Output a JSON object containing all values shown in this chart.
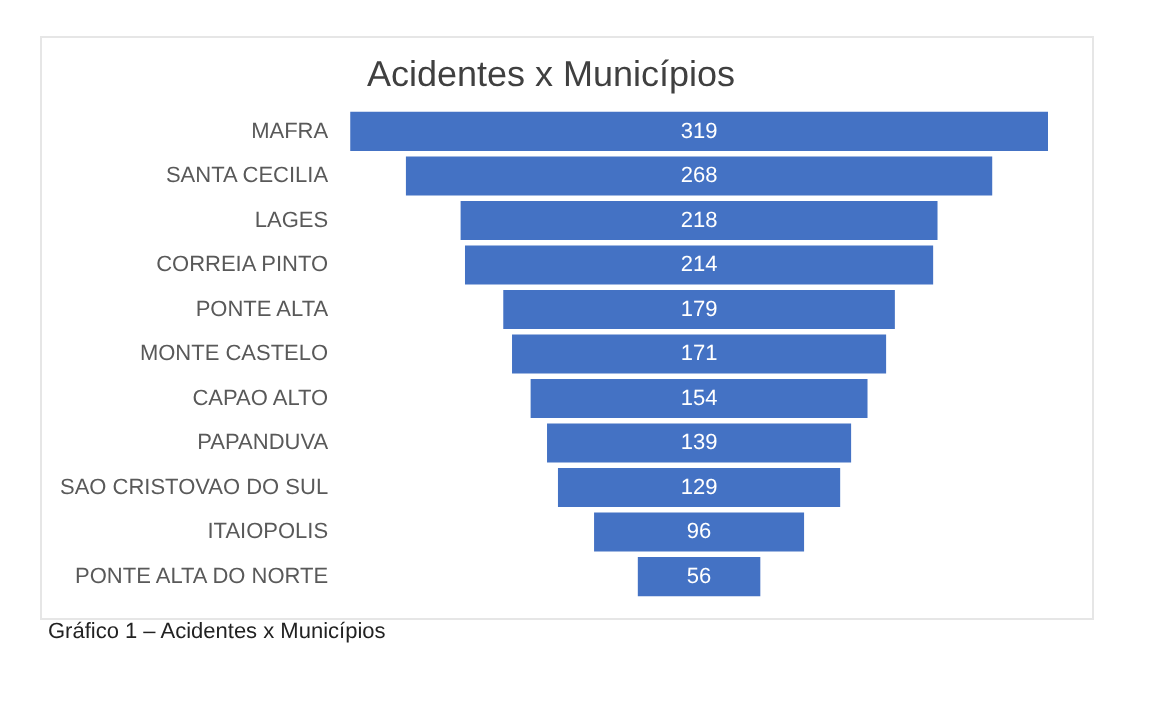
{
  "chart_data": {
    "type": "other",
    "title": "Acidentes x Municípios",
    "categories": [
      "MAFRA",
      "SANTA CECILIA",
      "LAGES",
      "CORREIA PINTO",
      "PONTE ALTA",
      "MONTE CASTELO",
      "CAPAO ALTO",
      "PAPANDUVA",
      "SAO CRISTOVAO DO SUL",
      "ITAIOPOLIS",
      "PONTE ALTA DO NORTE"
    ],
    "values": [
      319,
      268,
      218,
      214,
      179,
      171,
      154,
      139,
      129,
      96,
      56
    ],
    "color": "#4472c4",
    "data_labels": true,
    "annotations": [
      "Gráfico 1 – Acidentes x Municípios"
    ]
  }
}
